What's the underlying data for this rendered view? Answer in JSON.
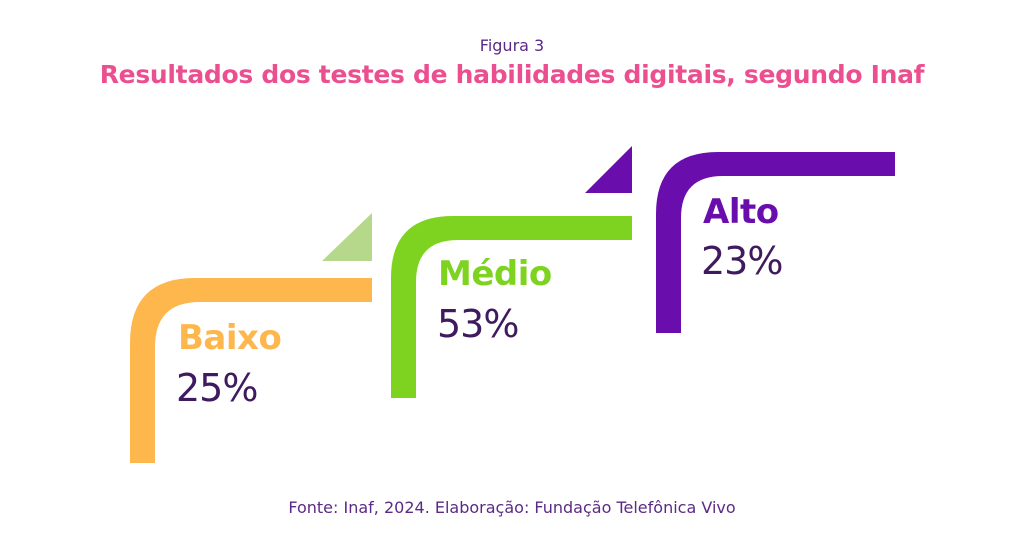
{
  "figure": {
    "label": "Figura 3",
    "title": "Resultados dos testes de habilidades digitais, segundo Inaf",
    "source": "Fonte: Inaf, 2024. Elaboração: Fundação Telefônica Vivo"
  },
  "levels": [
    {
      "name": "Baixo",
      "value": "25%",
      "color": "#fdb74d",
      "accent_color": "#fdb74d"
    },
    {
      "name": "Médio",
      "value": "53%",
      "color": "#7ed321",
      "accent_color": "#b5d88a"
    },
    {
      "name": "Alto",
      "value": "23%",
      "color": "#6a0dad",
      "accent_color": "#6a0dad"
    }
  ],
  "colors": {
    "title": "#ec4f8f",
    "text": "#5b2a86",
    "value_text": "#3f1a5e"
  }
}
